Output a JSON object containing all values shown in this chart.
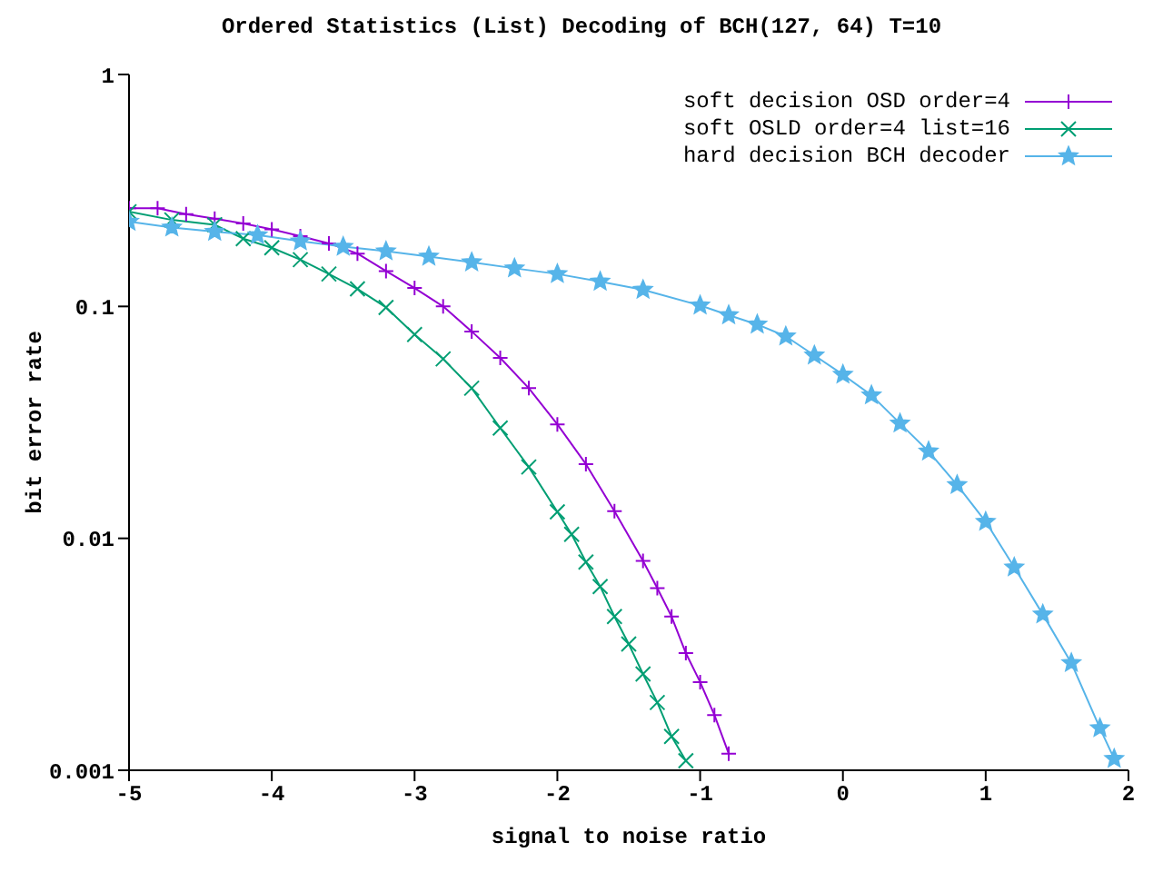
{
  "chart_data": {
    "type": "line",
    "title": "Ordered Statistics (List) Decoding of BCH(127, 64) T=10",
    "xlabel": "signal to noise ratio",
    "ylabel": "bit error rate",
    "log": "y",
    "grid": false,
    "legend": "top right",
    "xlim": [
      -5,
      2
    ],
    "xticks": [
      -5,
      -4,
      -3,
      -2,
      -1,
      0,
      1,
      2
    ],
    "ylim": [
      0.001,
      1
    ],
    "yticks": [
      0.001,
      0.01,
      0.1,
      1
    ],
    "series": [
      {
        "name": "soft decision OSD order=4",
        "color": "#9400d3",
        "marker": "plus",
        "x": [
          -5,
          -4.8,
          -4.6,
          -4.4,
          -4.2,
          -4.0,
          -3.8,
          -3.6,
          -3.4,
          -3.2,
          -3.0,
          -2.8,
          -2.6,
          -2.4,
          -2.2,
          -2.0,
          -1.8,
          -1.6,
          -1.4,
          -1.3,
          -1.2,
          -1.1,
          -1.0,
          -0.9,
          -0.8
        ],
        "values": [
          0.265,
          0.265,
          0.25,
          0.239,
          0.228,
          0.215,
          0.201,
          0.187,
          0.169,
          0.142,
          0.12,
          0.1,
          0.078,
          0.06,
          0.0444,
          0.031,
          0.0209,
          0.0131,
          0.008,
          0.0061,
          0.0046,
          0.0032,
          0.0024,
          0.00173,
          0.00118
        ]
      },
      {
        "name": "soft OSLD order=4 list=16",
        "color": "#009e73",
        "marker": "cross",
        "x": [
          -5,
          -4.7,
          -4.4,
          -4.2,
          -4.0,
          -3.8,
          -3.6,
          -3.4,
          -3.2,
          -3.0,
          -2.8,
          -2.6,
          -2.4,
          -2.2,
          -2.0,
          -1.9,
          -1.8,
          -1.7,
          -1.6,
          -1.5,
          -1.4,
          -1.3,
          -1.2,
          -1.1
        ],
        "values": [
          0.256,
          0.236,
          0.225,
          0.196,
          0.179,
          0.159,
          0.138,
          0.119,
          0.099,
          0.0757,
          0.0594,
          0.0444,
          0.0299,
          0.0203,
          0.013,
          0.0104,
          0.0079,
          0.0062,
          0.0046,
          0.0035,
          0.0026,
          0.00196,
          0.0014,
          0.0011
        ]
      },
      {
        "name": "hard decision BCH decoder",
        "color": "#56b4e9",
        "marker": "star",
        "x": [
          -5,
          -4.7,
          -4.4,
          -4.1,
          -3.8,
          -3.5,
          -3.2,
          -2.9,
          -2.6,
          -2.3,
          -2.0,
          -1.7,
          -1.4,
          -1.0,
          -0.8,
          -0.6,
          -0.4,
          -0.2,
          0,
          0.2,
          0.4,
          0.6,
          0.8,
          1.0,
          1.2,
          1.4,
          1.6,
          1.8,
          1.9
        ],
        "values": [
          0.232,
          0.219,
          0.21,
          0.203,
          0.191,
          0.181,
          0.173,
          0.164,
          0.155,
          0.146,
          0.138,
          0.128,
          0.118,
          0.101,
          0.0917,
          0.0836,
          0.0743,
          0.0615,
          0.0508,
          0.0414,
          0.0313,
          0.0237,
          0.017,
          0.0118,
          0.0075,
          0.0047,
          0.0029,
          0.00152,
          0.00112
        ]
      }
    ]
  }
}
